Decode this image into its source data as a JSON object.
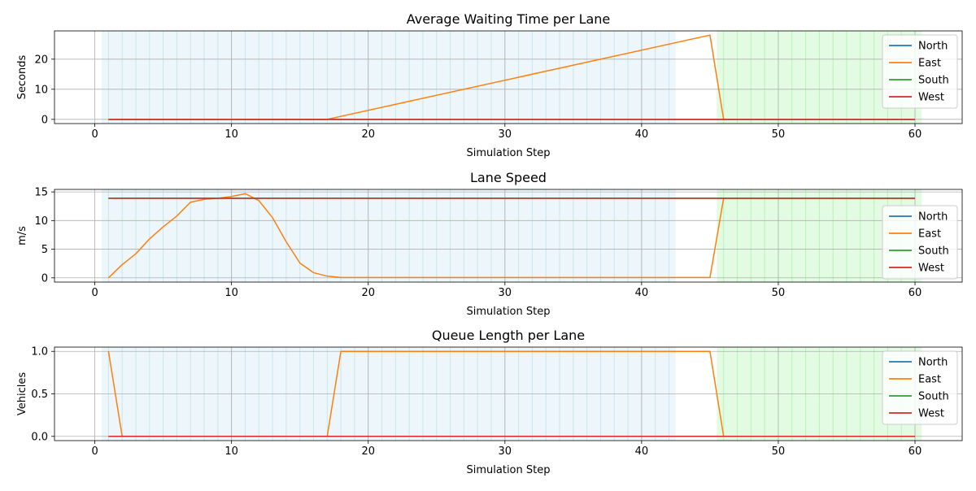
{
  "colors": {
    "north": "#1f77b4",
    "east": "#ff7f0e",
    "south": "#2ca02c",
    "west": "#d62728",
    "band_ns": "#add8e6",
    "band_ew": "#90ee90",
    "grid": "#b0b0b0"
  },
  "chart_data": [
    {
      "type": "line",
      "title": "Average Waiting Time per Lane",
      "xlabel": "Simulation Step",
      "ylabel": "Seconds",
      "xlim": [
        -2.95,
        63.45
      ],
      "ylim": [
        -1.4,
        29.4
      ],
      "xticks": [
        0,
        10,
        20,
        30,
        40,
        50,
        60
      ],
      "yticks": [
        0,
        10,
        20
      ],
      "grid": true,
      "legend_position": "top-right",
      "bands": [
        {
          "phase": "green-north-south",
          "from": 0.5,
          "to": 42.5,
          "color_key": "band_ns"
        },
        {
          "phase": "green-east-west",
          "from": 45.5,
          "to": 60.5,
          "color_key": "band_ew"
        }
      ],
      "series": [
        {
          "name": "North",
          "color_key": "north",
          "x": [
            1,
            60
          ],
          "y": [
            0,
            0
          ]
        },
        {
          "name": "East",
          "color_key": "east",
          "x": [
            1,
            17,
            45,
            46,
            60
          ],
          "y": [
            0,
            0,
            28,
            0,
            0
          ]
        },
        {
          "name": "South",
          "color_key": "south",
          "x": [
            1,
            60
          ],
          "y": [
            0,
            0
          ]
        },
        {
          "name": "West",
          "color_key": "west",
          "x": [
            1,
            60
          ],
          "y": [
            0,
            0
          ]
        }
      ]
    },
    {
      "type": "line",
      "title": "Lane Speed",
      "xlabel": "Simulation Step",
      "ylabel": "m/s",
      "xlim": [
        -2.95,
        63.45
      ],
      "ylim": [
        -0.74,
        15.44
      ],
      "xticks": [
        0,
        10,
        20,
        30,
        40,
        50,
        60
      ],
      "yticks": [
        0,
        5,
        10,
        15
      ],
      "grid": true,
      "legend_position": "center-right",
      "bands": [
        {
          "phase": "green-north-south",
          "from": 0.5,
          "to": 42.5,
          "color_key": "band_ns"
        },
        {
          "phase": "green-east-west",
          "from": 45.5,
          "to": 60.5,
          "color_key": "band_ew"
        }
      ],
      "series": [
        {
          "name": "North",
          "color_key": "north",
          "x": [
            1,
            60
          ],
          "y": [
            13.9,
            13.9
          ]
        },
        {
          "name": "East",
          "color_key": "east",
          "x": [
            1,
            2,
            3,
            4,
            5,
            6,
            7,
            8,
            9,
            10,
            11,
            12,
            13,
            14,
            15,
            16,
            17,
            18,
            45,
            46,
            60
          ],
          "y": [
            0,
            2.3,
            4.2,
            6.8,
            8.9,
            10.8,
            13.2,
            13.7,
            13.9,
            14.2,
            14.7,
            13.5,
            10.5,
            6.3,
            2.6,
            0.9,
            0.3,
            0.05,
            0.05,
            13.9,
            13.9
          ]
        },
        {
          "name": "South",
          "color_key": "south",
          "x": [
            1,
            60
          ],
          "y": [
            13.9,
            13.9
          ]
        },
        {
          "name": "West",
          "color_key": "west",
          "x": [
            1,
            60
          ],
          "y": [
            13.9,
            13.9
          ]
        }
      ]
    },
    {
      "type": "line",
      "title": "Queue Length per Lane",
      "xlabel": "Simulation Step",
      "ylabel": "Vehicles",
      "xlim": [
        -2.95,
        63.45
      ],
      "ylim": [
        -0.05,
        1.05
      ],
      "xticks": [
        0,
        10,
        20,
        30,
        40,
        50,
        60
      ],
      "yticks": [
        0.0,
        0.5,
        1.0
      ],
      "ytick_labels": [
        "0.0",
        "0.5",
        "1.0"
      ],
      "grid": true,
      "legend_position": "top-right",
      "bands": [
        {
          "phase": "green-north-south",
          "from": 0.5,
          "to": 42.5,
          "color_key": "band_ns"
        },
        {
          "phase": "green-east-west",
          "from": 45.5,
          "to": 60.5,
          "color_key": "band_ew"
        }
      ],
      "series": [
        {
          "name": "North",
          "color_key": "north",
          "x": [
            1,
            60
          ],
          "y": [
            0,
            0
          ]
        },
        {
          "name": "East",
          "color_key": "east",
          "x": [
            1,
            2,
            17,
            18,
            45,
            46,
            60
          ],
          "y": [
            1,
            0,
            0,
            1,
            1,
            0,
            0
          ]
        },
        {
          "name": "South",
          "color_key": "south",
          "x": [
            1,
            60
          ],
          "y": [
            0,
            0
          ]
        },
        {
          "name": "West",
          "color_key": "west",
          "x": [
            1,
            60
          ],
          "y": [
            0,
            0
          ]
        }
      ]
    }
  ]
}
